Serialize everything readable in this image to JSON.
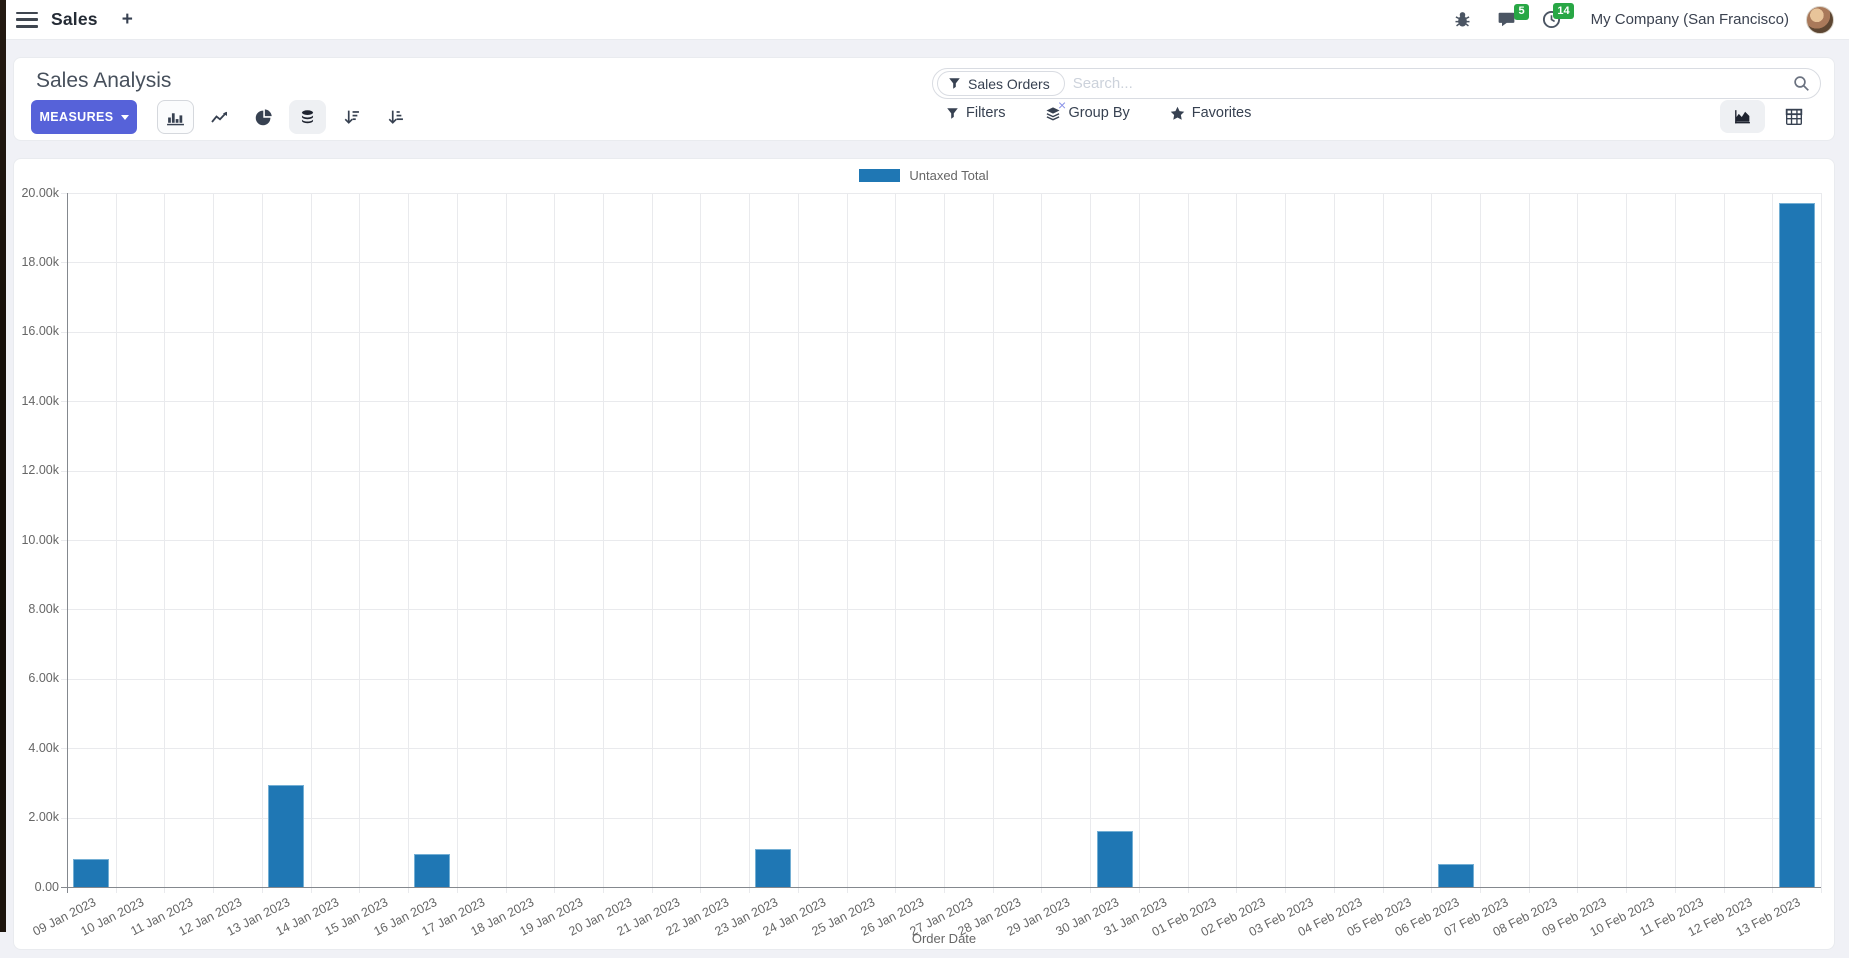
{
  "navbar": {
    "app_name": "Sales",
    "plus_label": "+",
    "messages_badge": "5",
    "activities_badge": "14",
    "company": "My Company (San Francisco)"
  },
  "control_panel": {
    "title": "Sales Analysis",
    "measures_label": "MEASURES",
    "search": {
      "facet": "Sales Orders",
      "facet_remove": "×",
      "placeholder": "Search..."
    },
    "filters_label": "Filters",
    "group_by_label": "Group By",
    "favorites_label": "Favorites"
  },
  "colors": {
    "accent": "#5662d9",
    "bar": "#1f77b4",
    "badge_green": "#28a745"
  },
  "chart_data": {
    "type": "bar",
    "title": "",
    "legend": [
      "Untaxed Total"
    ],
    "series_color": "#1f77b4",
    "xlabel": "Order Date",
    "ylabel": "",
    "ylim": [
      0,
      20000
    ],
    "ytick_step": 2000,
    "ytick_labels": [
      "0.00",
      "2.00k",
      "4.00k",
      "6.00k",
      "8.00k",
      "10.00k",
      "12.00k",
      "14.00k",
      "16.00k",
      "18.00k",
      "20.00k"
    ],
    "grid": true,
    "legend_position": "top",
    "categories": [
      "09 Jan 2023",
      "10 Jan 2023",
      "11 Jan 2023",
      "12 Jan 2023",
      "13 Jan 2023",
      "14 Jan 2023",
      "15 Jan 2023",
      "16 Jan 2023",
      "17 Jan 2023",
      "18 Jan 2023",
      "19 Jan 2023",
      "20 Jan 2023",
      "21 Jan 2023",
      "22 Jan 2023",
      "23 Jan 2023",
      "24 Jan 2023",
      "25 Jan 2023",
      "26 Jan 2023",
      "27 Jan 2023",
      "28 Jan 2023",
      "29 Jan 2023",
      "30 Jan 2023",
      "31 Jan 2023",
      "01 Feb 2023",
      "02 Feb 2023",
      "03 Feb 2023",
      "04 Feb 2023",
      "05 Feb 2023",
      "06 Feb 2023",
      "07 Feb 2023",
      "08 Feb 2023",
      "09 Feb 2023",
      "10 Feb 2023",
      "11 Feb 2023",
      "12 Feb 2023",
      "13 Feb 2023"
    ],
    "values": [
      800,
      0,
      0,
      0,
      2950,
      0,
      0,
      950,
      0,
      0,
      0,
      0,
      0,
      0,
      1100,
      0,
      0,
      0,
      0,
      0,
      0,
      1600,
      0,
      0,
      0,
      0,
      0,
      0,
      650,
      0,
      0,
      0,
      0,
      0,
      0,
      19700
    ]
  }
}
